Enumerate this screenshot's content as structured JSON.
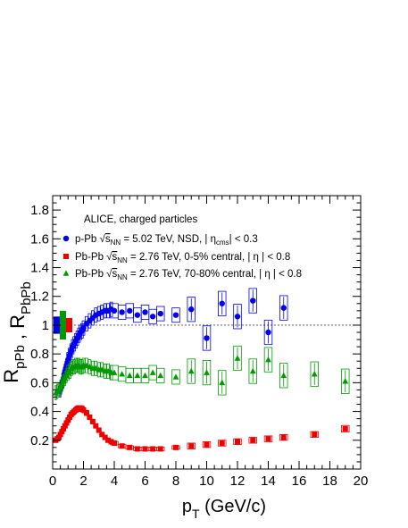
{
  "chart_data": {
    "type": "scatter",
    "title": "ALICE, charged particles",
    "xlabel": "p_T (GeV/c)",
    "ylabel": "R_pPb , R_PbPb",
    "xlim": [
      0,
      20
    ],
    "ylim": [
      0,
      1.9
    ],
    "x_ticks": [
      0,
      2,
      4,
      6,
      8,
      10,
      12,
      14,
      16,
      18,
      20
    ],
    "y_ticks": [
      0.2,
      0.4,
      0.6,
      0.8,
      1,
      1.2,
      1.4,
      1.6,
      1.8
    ],
    "grid": false,
    "legend_position": "top-left",
    "reference_line": 1,
    "x_tick_labels": [
      "0",
      "2",
      "4",
      "6",
      "8",
      "10",
      "12",
      "14",
      "16",
      "18",
      "20"
    ],
    "y_tick_labels": [
      "0.2",
      "0.4",
      "0.6",
      "0.8",
      "1",
      "1.2",
      "1.4",
      "1.6",
      "1.8"
    ],
    "series": [
      {
        "name": "p-Pb  √s_NN = 5.02 TeV,  NSD, | η_cms| < 0.3",
        "legend": {
          "system": "p-Pb",
          "energy": "= 5.02 TeV,  NSD, | η",
          "sub": "cms",
          "tail": "| < 0.3"
        },
        "color": "#0000ee",
        "marker": "circle",
        "x": [
          0.5,
          0.55,
          0.6,
          0.65,
          0.7,
          0.75,
          0.8,
          0.85,
          0.9,
          0.95,
          1.0,
          1.1,
          1.2,
          1.3,
          1.4,
          1.5,
          1.6,
          1.7,
          1.8,
          1.9,
          2.0,
          2.2,
          2.4,
          2.6,
          2.8,
          3.0,
          3.2,
          3.4,
          3.6,
          3.8,
          4.0,
          4.5,
          5.0,
          5.5,
          6.0,
          6.5,
          7.0,
          8.0,
          9.0,
          10.0,
          11.0,
          12.0,
          13.0,
          14.0,
          15.0,
          16.0,
          18.0
        ],
        "y": [
          0.55,
          0.57,
          0.59,
          0.61,
          0.63,
          0.66,
          0.68,
          0.7,
          0.72,
          0.74,
          0.76,
          0.79,
          0.82,
          0.85,
          0.87,
          0.89,
          0.91,
          0.93,
          0.95,
          0.96,
          0.98,
          1.01,
          1.03,
          1.05,
          1.07,
          1.08,
          1.09,
          1.1,
          1.1,
          1.11,
          1.1,
          1.09,
          1.1,
          1.07,
          1.09,
          1.06,
          1.08,
          1.07,
          1.11,
          0.91,
          1.15,
          1.06,
          1.17,
          0.95,
          1.12,
          null,
          null
        ],
        "sys_box": 0.05
      },
      {
        "name": "Pb-Pb  √s_NN = 2.76 TeV,  0-5% central, | η | < 0.8",
        "legend": {
          "system": "Pb-Pb",
          "energy": "= 2.76 TeV,  0-5% central, | η | < 0.8"
        },
        "color": "#ee0000",
        "marker": "square",
        "x": [
          0.2,
          0.3,
          0.4,
          0.5,
          0.6,
          0.7,
          0.8,
          0.9,
          1.0,
          1.1,
          1.2,
          1.3,
          1.4,
          1.5,
          1.6,
          1.7,
          1.8,
          1.9,
          2.0,
          2.2,
          2.4,
          2.6,
          2.8,
          3.0,
          3.2,
          3.4,
          3.6,
          3.8,
          4.0,
          4.5,
          5.0,
          5.5,
          6.0,
          6.5,
          7.0,
          8.0,
          9.0,
          10.0,
          11.0,
          12.0,
          13.0,
          14.0,
          15.0,
          17.0,
          19.0
        ],
        "y": [
          0.2,
          0.21,
          0.22,
          0.24,
          0.26,
          0.28,
          0.3,
          0.32,
          0.34,
          0.36,
          0.38,
          0.39,
          0.4,
          0.41,
          0.42,
          0.42,
          0.42,
          0.42,
          0.41,
          0.39,
          0.36,
          0.33,
          0.3,
          0.27,
          0.24,
          0.22,
          0.2,
          0.19,
          0.18,
          0.16,
          0.15,
          0.14,
          0.14,
          0.14,
          0.14,
          0.15,
          0.16,
          0.17,
          0.18,
          0.19,
          0.2,
          0.21,
          0.22,
          0.24,
          0.28
        ],
        "sys_box": 0.02
      },
      {
        "name": "Pb-Pb  √s_NN = 2.76 TeV,  70-80% central, | η | < 0.8",
        "legend": {
          "system": "Pb-Pb",
          "energy": "= 2.76 TeV,  70-80% central, | η | < 0.8"
        },
        "color": "#009900",
        "marker": "triangle",
        "x": [
          0.2,
          0.3,
          0.4,
          0.5,
          0.6,
          0.7,
          0.8,
          0.9,
          1.0,
          1.1,
          1.2,
          1.3,
          1.4,
          1.5,
          1.6,
          1.7,
          1.8,
          1.9,
          2.0,
          2.2,
          2.4,
          2.6,
          2.8,
          3.0,
          3.2,
          3.4,
          3.6,
          3.8,
          4.0,
          4.5,
          5.0,
          5.5,
          6.0,
          6.5,
          7.0,
          8.0,
          9.0,
          10.0,
          11.0,
          12.0,
          13.0,
          14.0,
          15.0,
          17.0,
          19.0
        ],
        "y": [
          0.53,
          0.54,
          0.55,
          0.57,
          0.59,
          0.61,
          0.63,
          0.65,
          0.67,
          0.68,
          0.7,
          0.71,
          0.71,
          0.72,
          0.72,
          0.72,
          0.71,
          0.71,
          0.72,
          0.72,
          0.71,
          0.7,
          0.7,
          0.69,
          0.69,
          0.68,
          0.68,
          0.67,
          0.67,
          0.66,
          0.65,
          0.65,
          0.65,
          0.67,
          0.65,
          0.64,
          0.68,
          0.67,
          0.6,
          0.77,
          0.68,
          0.76,
          0.65,
          0.66,
          0.61
        ],
        "sys_box": 0.05
      }
    ],
    "norm_boxes": [
      {
        "color": "#0000ee",
        "center": 1,
        "half": 0.06
      },
      {
        "color": "#009900",
        "center": 1,
        "half": 0.1
      },
      {
        "color": "#ee0000",
        "center": 1,
        "half": 0.05
      }
    ]
  }
}
